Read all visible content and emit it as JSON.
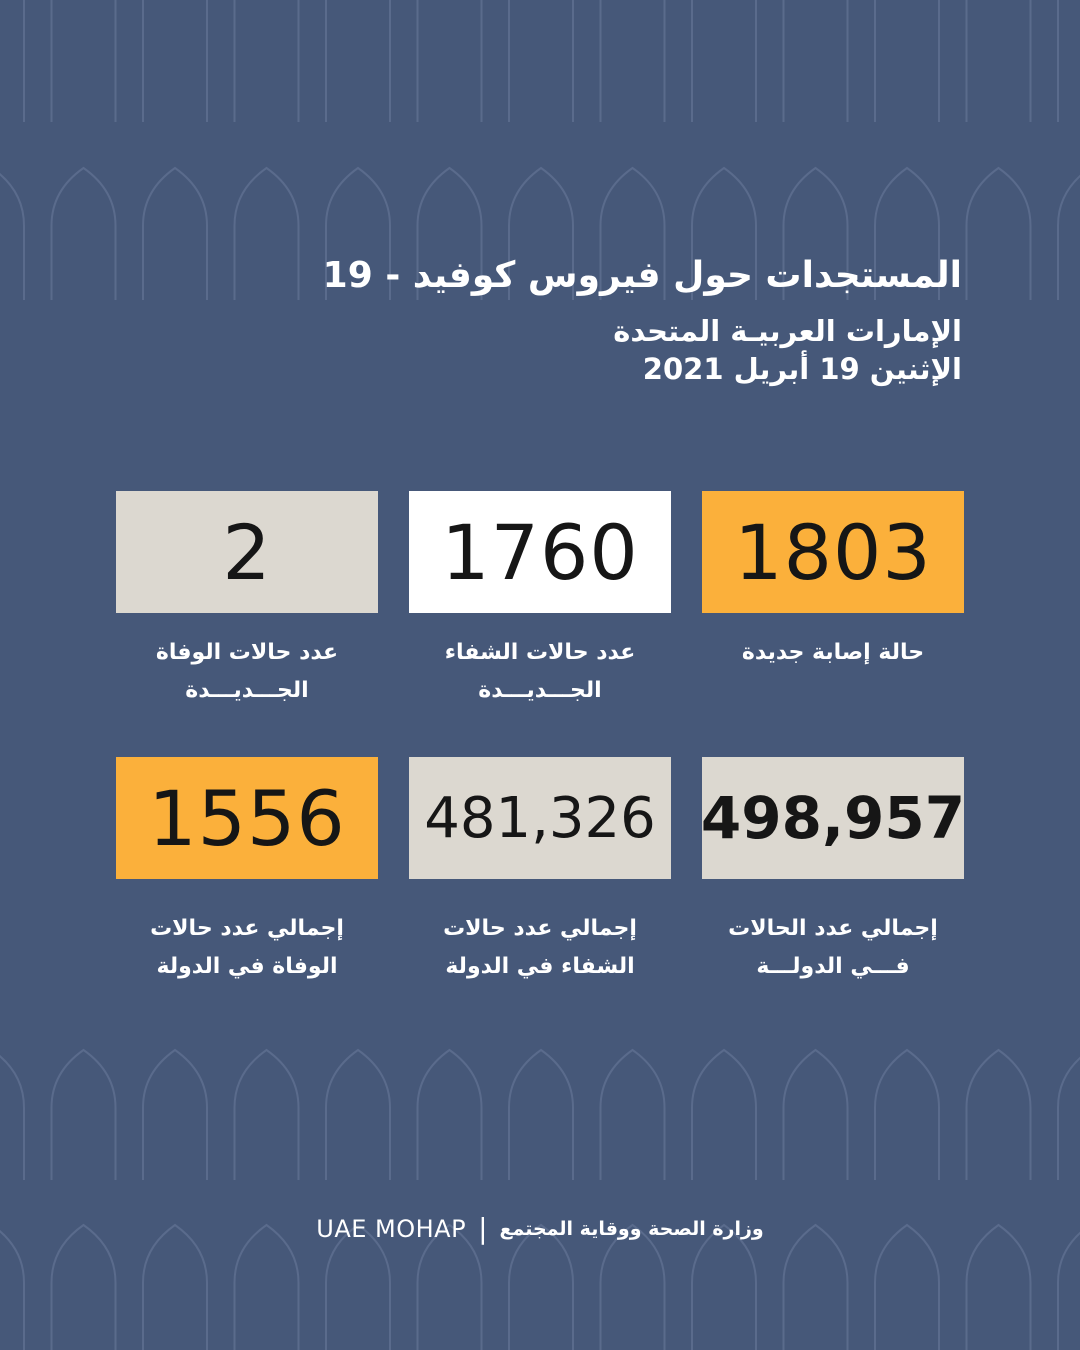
{
  "header": {
    "title": "المستجدات حول فيروس كوفيد - 19",
    "country": "الإمارات العربيـة المتحدة",
    "date": "الإثنين  19 أبريل 2021"
  },
  "stats": [
    {
      "value": "1803",
      "label_line1": "حالة إصابة جديدة",
      "label_line2": "",
      "bg": "#fbb03b"
    },
    {
      "value": "1760",
      "label_line1": "عدد حالات الشفاء",
      "label_line2": "الجـــديـــدة",
      "bg": "#ffffff"
    },
    {
      "value": "2",
      "label_line1": "عدد حالات الوفاة",
      "label_line2": "الجـــديـــدة",
      "bg": "#dcd8d0"
    },
    {
      "value": "498,957",
      "label_line1": "إجمالي عدد الحالات",
      "label_line2": "فـــي الدولـــة",
      "bg": "#dcd8d0"
    },
    {
      "value": "481,326",
      "label_line1": "إجمالي عدد حالات",
      "label_line2": "الشفاء في الدولة",
      "bg": "#dcd8d0"
    },
    {
      "value": "1556",
      "label_line1": "إجمالي عدد حالات",
      "label_line2": "الوفاة في الدولة",
      "bg": "#fbb03b"
    }
  ],
  "footer": {
    "org_en": "UAE MOHAP",
    "separator": "|",
    "org_ar": "وزارة الصحة ووقاية المجتمع"
  },
  "colors": {
    "background": "#465879",
    "arch_stroke": "#5a6b8c",
    "accent": "#fbb03b"
  }
}
